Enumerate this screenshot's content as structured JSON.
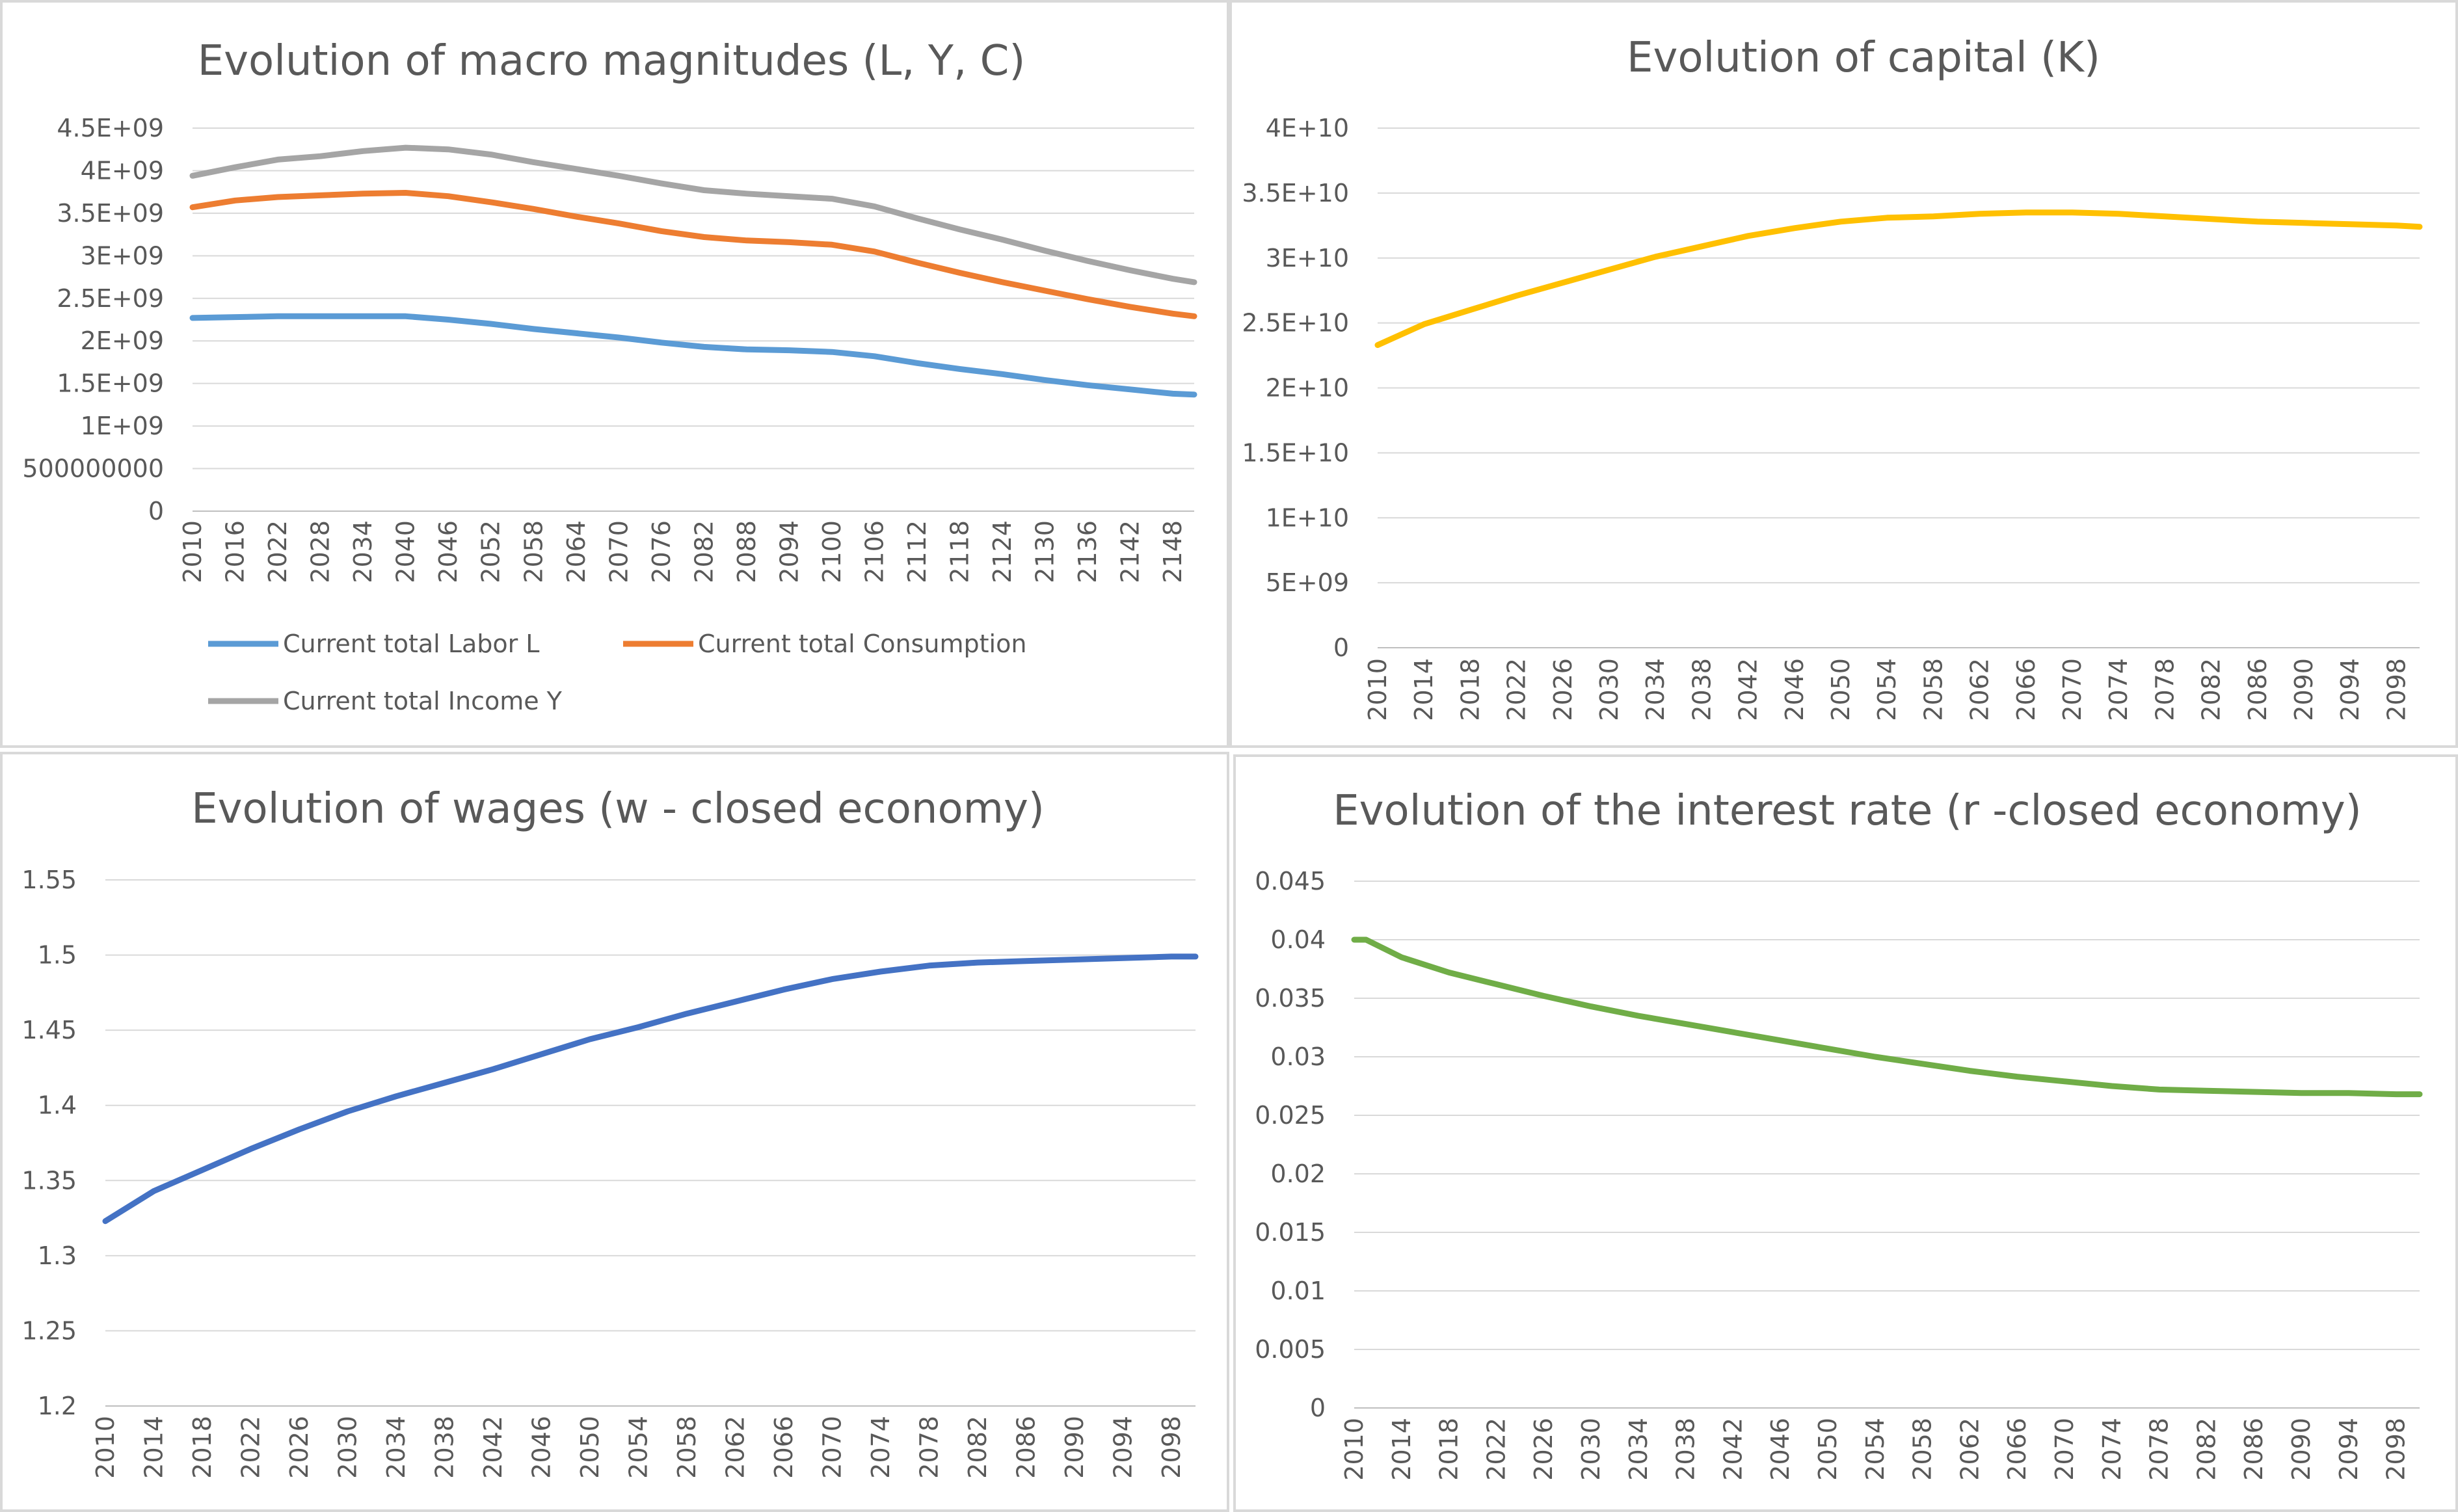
{
  "chart_data": [
    {
      "type": "line",
      "title": "Evolution of macro magnitudes (L, Y, C)",
      "xlabel": "",
      "ylabel": "",
      "ylim": [
        0,
        4500000000
      ],
      "yticks": [
        "0",
        "500000000",
        "1E+09",
        "1.5E+09",
        "2E+09",
        "2.5E+09",
        "3E+09",
        "3.5E+09",
        "4E+09",
        "4.5E+09"
      ],
      "x": [
        2010,
        2016,
        2022,
        2028,
        2034,
        2040,
        2046,
        2052,
        2058,
        2064,
        2070,
        2076,
        2082,
        2088,
        2094,
        2100,
        2106,
        2112,
        2118,
        2124,
        2130,
        2136,
        2142,
        2148,
        2151
      ],
      "xticks": [
        "2010",
        "2016",
        "2022",
        "2028",
        "2034",
        "2040",
        "2046",
        "2052",
        "2058",
        "2064",
        "2070",
        "2076",
        "2082",
        "2088",
        "2094",
        "2100",
        "2106",
        "2112",
        "2118",
        "2124",
        "2130",
        "2136",
        "2142",
        "2148"
      ],
      "grid": true,
      "legend_position": "bottom",
      "series": [
        {
          "name": "Current total Labor L",
          "color": "#5b9bd5",
          "values": [
            2270000000,
            2280000000,
            2290000000,
            2290000000,
            2290000000,
            2290000000,
            2250000000,
            2200000000,
            2140000000,
            2090000000,
            2040000000,
            1980000000,
            1930000000,
            1900000000,
            1890000000,
            1870000000,
            1820000000,
            1740000000,
            1670000000,
            1610000000,
            1540000000,
            1480000000,
            1430000000,
            1380000000,
            1370000000
          ]
        },
        {
          "name": "Current total Consumption",
          "color": "#ed7d31",
          "values": [
            3570000000,
            3650000000,
            3690000000,
            3710000000,
            3730000000,
            3740000000,
            3700000000,
            3630000000,
            3550000000,
            3460000000,
            3380000000,
            3290000000,
            3220000000,
            3180000000,
            3160000000,
            3130000000,
            3050000000,
            2920000000,
            2800000000,
            2690000000,
            2590000000,
            2490000000,
            2400000000,
            2320000000,
            2290000000
          ]
        },
        {
          "name": "Current total Income Y",
          "color": "#a5a5a5",
          "values": [
            3940000000,
            4040000000,
            4130000000,
            4170000000,
            4230000000,
            4270000000,
            4250000000,
            4190000000,
            4100000000,
            4020000000,
            3940000000,
            3850000000,
            3770000000,
            3730000000,
            3700000000,
            3670000000,
            3580000000,
            3440000000,
            3310000000,
            3190000000,
            3060000000,
            2940000000,
            2830000000,
            2730000000,
            2690000000
          ]
        }
      ]
    },
    {
      "type": "line",
      "title": "Evolution of capital (K)",
      "xlabel": "",
      "ylabel": "",
      "ylim": [
        0,
        40000000000
      ],
      "yticks": [
        "0",
        "5E+09",
        "1E+10",
        "1.5E+10",
        "2E+10",
        "2.5E+10",
        "3E+10",
        "3.5E+10",
        "4E+10"
      ],
      "x": [
        2010,
        2014,
        2018,
        2022,
        2026,
        2030,
        2034,
        2038,
        2042,
        2046,
        2050,
        2054,
        2058,
        2062,
        2066,
        2070,
        2074,
        2078,
        2082,
        2086,
        2090,
        2094,
        2098,
        2100
      ],
      "xticks": [
        "2010",
        "2014",
        "2018",
        "2022",
        "2026",
        "2030",
        "2034",
        "2038",
        "2042",
        "2046",
        "2050",
        "2054",
        "2058",
        "2062",
        "2066",
        "2070",
        "2074",
        "2078",
        "2082",
        "2086",
        "2090",
        "2094",
        "2098"
      ],
      "grid": true,
      "legend_position": "none",
      "series": [
        {
          "color": "#ffc000",
          "values": [
            23300000000,
            24900000000,
            26000000000,
            27100000000,
            28100000000,
            29100000000,
            30100000000,
            30900000000,
            31700000000,
            32300000000,
            32800000000,
            33100000000,
            33200000000,
            33400000000,
            33500000000,
            33500000000,
            33400000000,
            33200000000,
            33000000000,
            32800000000,
            32700000000,
            32600000000,
            32500000000,
            32400000000
          ]
        }
      ]
    },
    {
      "type": "line",
      "title": "Evolution of wages (w - closed economy)",
      "xlabel": "",
      "ylabel": "",
      "ylim": [
        1.2,
        1.55
      ],
      "yticks": [
        "1.2",
        "1.25",
        "1.3",
        "1.35",
        "1.4",
        "1.45",
        "1.5",
        "1.55"
      ],
      "x": [
        2010,
        2014,
        2018,
        2022,
        2026,
        2030,
        2034,
        2038,
        2042,
        2046,
        2050,
        2054,
        2058,
        2062,
        2066,
        2070,
        2074,
        2078,
        2082,
        2086,
        2090,
        2094,
        2098,
        2100
      ],
      "xticks": [
        "2010",
        "2014",
        "2018",
        "2022",
        "2026",
        "2030",
        "2034",
        "2038",
        "2042",
        "2046",
        "2050",
        "2054",
        "2058",
        "2062",
        "2066",
        "2070",
        "2074",
        "2078",
        "2082",
        "2086",
        "2090",
        "2094",
        "2098"
      ],
      "grid": true,
      "legend_position": "none",
      "series": [
        {
          "color": "#4472c4",
          "values": [
            1.323,
            1.343,
            1.357,
            1.371,
            1.384,
            1.396,
            1.406,
            1.415,
            1.424,
            1.434,
            1.444,
            1.452,
            1.461,
            1.469,
            1.477,
            1.484,
            1.489,
            1.493,
            1.495,
            1.496,
            1.497,
            1.498,
            1.499,
            1.499
          ]
        }
      ]
    },
    {
      "type": "line",
      "title": "Evolution of the interest rate (r -closed economy)",
      "xlabel": "",
      "ylabel": "",
      "ylim": [
        0,
        0.045
      ],
      "yticks": [
        "0",
        "0.005",
        "0.01",
        "0.015",
        "0.02",
        "0.025",
        "0.03",
        "0.035",
        "0.04",
        "0.045"
      ],
      "x": [
        2010,
        2011,
        2014,
        2018,
        2022,
        2026,
        2030,
        2034,
        2038,
        2042,
        2046,
        2050,
        2054,
        2058,
        2062,
        2066,
        2070,
        2074,
        2078,
        2082,
        2086,
        2090,
        2094,
        2098,
        2100
      ],
      "xticks": [
        "2010",
        "2014",
        "2018",
        "2022",
        "2026",
        "2030",
        "2034",
        "2038",
        "2042",
        "2046",
        "2050",
        "2054",
        "2058",
        "2062",
        "2066",
        "2070",
        "2074",
        "2078",
        "2082",
        "2086",
        "2090",
        "2094",
        "2098"
      ],
      "grid": true,
      "legend_position": "none",
      "series": [
        {
          "color": "#70ad47",
          "values": [
            0.04,
            0.04,
            0.0385,
            0.0372,
            0.0362,
            0.0352,
            0.0343,
            0.0335,
            0.0328,
            0.0321,
            0.0314,
            0.0307,
            0.03,
            0.0294,
            0.0288,
            0.0283,
            0.0279,
            0.0275,
            0.0272,
            0.0271,
            0.027,
            0.0269,
            0.0269,
            0.0268,
            0.0268
          ]
        }
      ]
    }
  ]
}
